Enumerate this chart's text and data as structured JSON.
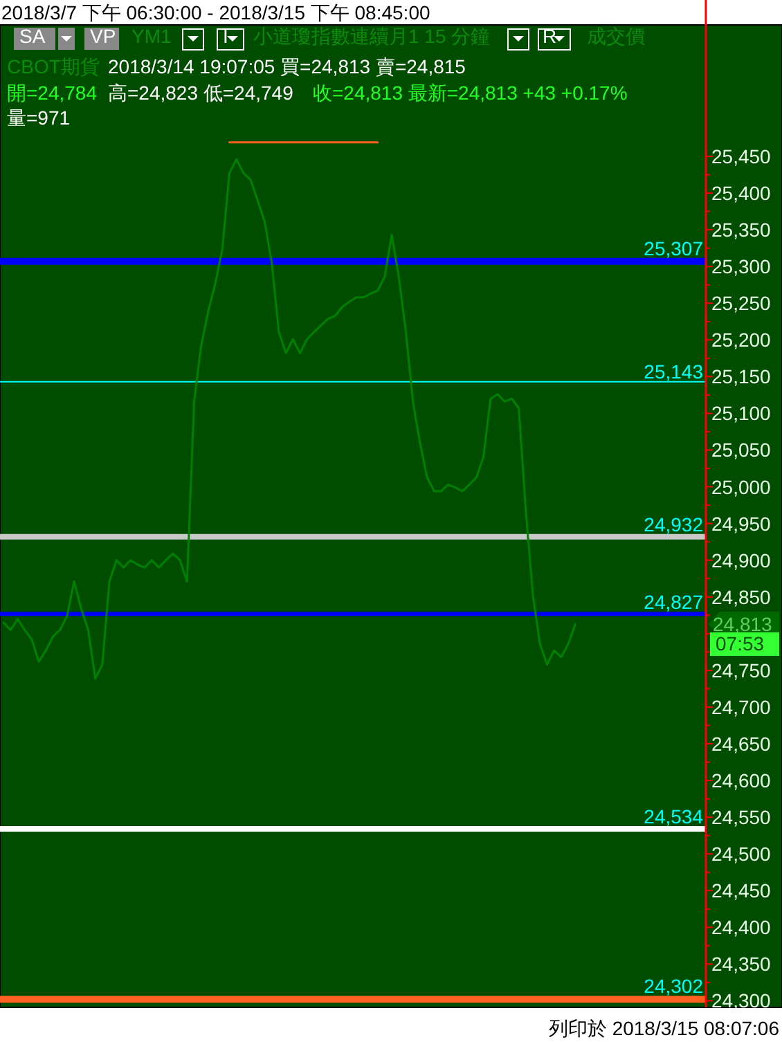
{
  "chart_data": {
    "type": "line",
    "title": "2018/3/7 下午 06:30:00 - 2018/3/15 下午 08:45:00",
    "categories": [
      null,
      null,
      null,
      null,
      null,
      null,
      null,
      null,
      null,
      null,
      null,
      null,
      null,
      null,
      null,
      null,
      null,
      null,
      null,
      null,
      null,
      null,
      null,
      null,
      null,
      null,
      null,
      null,
      null,
      null,
      null,
      null,
      null,
      null,
      null,
      null,
      null,
      null,
      null,
      null,
      null,
      null,
      null,
      null,
      null,
      null,
      null,
      null,
      null,
      null,
      null,
      null,
      null,
      null,
      null,
      null,
      null,
      null,
      null,
      null,
      null,
      null,
      null,
      null,
      null,
      null,
      null,
      null,
      null,
      null,
      null,
      null,
      null,
      null,
      null,
      null,
      null,
      null,
      null,
      null,
      null,
      null,
      null,
      null,
      null,
      null,
      null,
      null,
      null,
      null,
      null,
      null,
      null,
      null,
      null,
      null,
      null,
      null,
      null,
      null
    ],
    "series": [
      {
        "color": "#008000",
        "values": [
          24815,
          24805,
          24820,
          24805,
          24792,
          24762,
          24777,
          24796,
          24805,
          24824,
          24871,
          24834,
          24805,
          24739,
          24758,
          24871,
          24900,
          24890,
          24900,
          24894,
          24890,
          24900,
          24890,
          24900,
          24909,
          24900,
          24871,
          25116,
          25192,
          25239,
          25277,
          25324,
          25427,
          25446,
          25427,
          25418,
          25390,
          25361,
          25305,
          25211,
          25182,
          25201,
          25182,
          25201,
          25211,
          25220,
          25229,
          25233,
          25245,
          25252,
          25258,
          25258,
          25263,
          25267,
          25286,
          25343,
          25286,
          25211,
          25116,
          25060,
          25013,
          24994,
          24994,
          25003,
          24999,
          24994,
          25003,
          25013,
          25041,
          25120,
          25126,
          25116,
          25120,
          25107,
          24966,
          24852,
          24786,
          24758,
          24777,
          24768,
          24786,
          24813,
          null,
          null,
          null,
          null,
          null,
          null,
          null,
          null,
          null,
          null,
          null,
          null,
          null,
          null,
          null,
          null,
          null,
          null
        ]
      },
      {
        "color": "#ff6020",
        "values": [
          null,
          null,
          null,
          null,
          null,
          null,
          null,
          null,
          null,
          null,
          null,
          null,
          null,
          null,
          null,
          null,
          null,
          null,
          null,
          null,
          null,
          null,
          null,
          null,
          null,
          null,
          null,
          null,
          null,
          null,
          null,
          null,
          25469,
          25469,
          25469,
          25469,
          25469,
          25469,
          25469,
          25469,
          25469,
          25469,
          25469,
          25469,
          25469,
          25469,
          25469,
          25469,
          25469,
          25469,
          25469,
          25469,
          25469,
          25469,
          null,
          null,
          null,
          null,
          null,
          null,
          null,
          null,
          null,
          null,
          null,
          null,
          null,
          null,
          null,
          null,
          null,
          null,
          null,
          null,
          null,
          null,
          null,
          null,
          null,
          null,
          null,
          null,
          null,
          null,
          null,
          null,
          null,
          null,
          null,
          null,
          null,
          null,
          null,
          null,
          null,
          null,
          null,
          null,
          null,
          null
        ]
      }
    ],
    "ylim": [
      24291,
      25629
    ],
    "yticks": [
      {
        "value": 24300,
        "label": "24,300"
      },
      {
        "value": 24325,
        "label": null
      },
      {
        "value": 24350,
        "label": "24,350"
      },
      {
        "value": 24375,
        "label": null
      },
      {
        "value": 24400,
        "label": "24,400"
      },
      {
        "value": 24425,
        "label": null
      },
      {
        "value": 24450,
        "label": "24,450"
      },
      {
        "value": 24475,
        "label": null
      },
      {
        "value": 24500,
        "label": "24,500"
      },
      {
        "value": 24525,
        "label": null
      },
      {
        "value": 24550,
        "label": "24,550"
      },
      {
        "value": 24575,
        "label": null
      },
      {
        "value": 24600,
        "label": "24,600"
      },
      {
        "value": 24625,
        "label": null
      },
      {
        "value": 24650,
        "label": "24,650"
      },
      {
        "value": 24675,
        "label": null
      },
      {
        "value": 24700,
        "label": "24,700"
      },
      {
        "value": 24725,
        "label": null
      },
      {
        "value": 24750,
        "label": "24,750"
      },
      {
        "value": 24775,
        "label": null
      },
      {
        "value": 24800,
        "label": null
      },
      {
        "value": 24825,
        "label": null
      },
      {
        "value": 24850,
        "label": "24,850"
      },
      {
        "value": 24875,
        "label": null
      },
      {
        "value": 24900,
        "label": "24,900"
      },
      {
        "value": 24925,
        "label": null
      },
      {
        "value": 24950,
        "label": "24,950"
      },
      {
        "value": 24975,
        "label": null
      },
      {
        "value": 25000,
        "label": "25,000"
      },
      {
        "value": 25025,
        "label": null
      },
      {
        "value": 25050,
        "label": "25,050"
      },
      {
        "value": 25075,
        "label": null
      },
      {
        "value": 25100,
        "label": "25,100"
      },
      {
        "value": 25125,
        "label": null
      },
      {
        "value": 25150,
        "label": "25,150"
      },
      {
        "value": 25175,
        "label": null
      },
      {
        "value": 25200,
        "label": "25,200"
      },
      {
        "value": 25225,
        "label": null
      },
      {
        "value": 25250,
        "label": "25,250"
      },
      {
        "value": 25275,
        "label": null
      },
      {
        "value": 25300,
        "label": "25,300"
      },
      {
        "value": 25325,
        "label": null
      },
      {
        "value": 25350,
        "label": "25,350"
      },
      {
        "value": 25375,
        "label": null
      },
      {
        "value": 25400,
        "label": "25,400"
      },
      {
        "value": 25425,
        "label": null
      },
      {
        "value": 25450,
        "label": "25,450"
      }
    ],
    "tick_labels": "y",
    "grid": false,
    "ref_lines": [
      {
        "axis": "y",
        "value": 25307,
        "label": "25,307",
        "color": "#0000ff"
      },
      {
        "axis": "y",
        "value": 25143,
        "label": "25,143",
        "color": "#00ffff"
      },
      {
        "axis": "y",
        "value": 24932,
        "label": "24,932",
        "color": "#c8c8c8"
      },
      {
        "axis": "y",
        "value": 24827,
        "label": "24,827",
        "color": "#0000ff"
      },
      {
        "axis": "y",
        "value": 24534,
        "label": "24,534",
        "color": "#ffffff"
      },
      {
        "axis": "y",
        "value": 24302,
        "label": "24,302",
        "color": "#ff6020"
      }
    ],
    "annotations": [
      "SA",
      "VP",
      "YM1",
      "I",
      "小道瓊指數連續月1  15 分鐘",
      "R",
      "成交價",
      "CBOT",
      "期貨",
      "2018/3/14  19:07:05  買=24,813  賣=24,815",
      "開=24,784",
      "高=24,823  低=24,749",
      "收=24,813  最新=24,813  +43  +0.17%",
      "量=971",
      "列印於 2018/3/15 08:07:06",
      "24,813",
      "07:53"
    ]
  }
}
